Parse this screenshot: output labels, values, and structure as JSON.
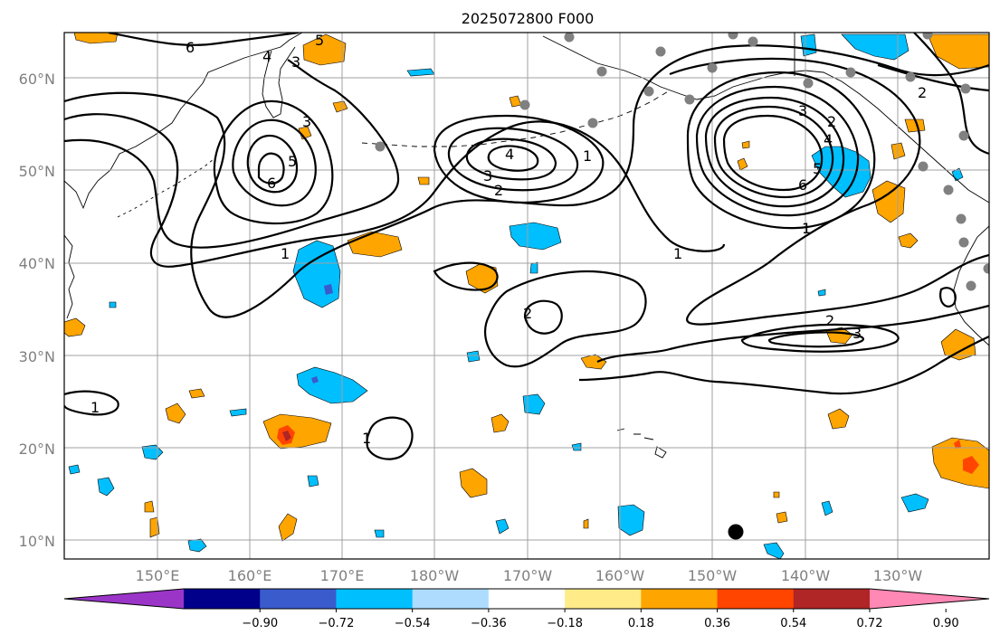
{
  "title": "2025072800 F000",
  "lat_labels": [
    "60°N",
    "50°N",
    "40°N",
    "30°N",
    "20°N",
    "10°N"
  ],
  "lon_labels": [
    "150°E",
    "160°E",
    "170°E",
    "180°W",
    "170°W",
    "160°W",
    "150°W",
    "140°W",
    "130°W"
  ],
  "colorbar": {
    "colors": [
      "#9a35c8",
      "#00008b",
      "#3a5bcc",
      "#00bfff",
      "#addcff",
      "#ffffff",
      "#ffeb88",
      "#ffa500",
      "#ff4500",
      "#b02525",
      "#ff88b4"
    ],
    "tick_labels": [
      "−0.90",
      "−0.72",
      "−0.54",
      "−0.36",
      "−0.18",
      "0.18",
      "0.36",
      "0.54",
      "0.72",
      "0.90"
    ]
  },
  "contour_labels": [
    "6",
    "4",
    "3",
    "5",
    "6",
    "5",
    "3",
    "4",
    "3",
    "2",
    "1",
    "1",
    "6",
    "5",
    "4",
    "3",
    "2",
    "1",
    "2",
    "3",
    "1",
    "2",
    "2",
    "1",
    "1"
  ],
  "colors": {
    "positive": "#ffa500",
    "positive_strong": "#ff4500",
    "negative": "#00bfff",
    "negative_strong": "#3a5bcc",
    "station": "#808080",
    "grid": "#a0a0a0"
  }
}
